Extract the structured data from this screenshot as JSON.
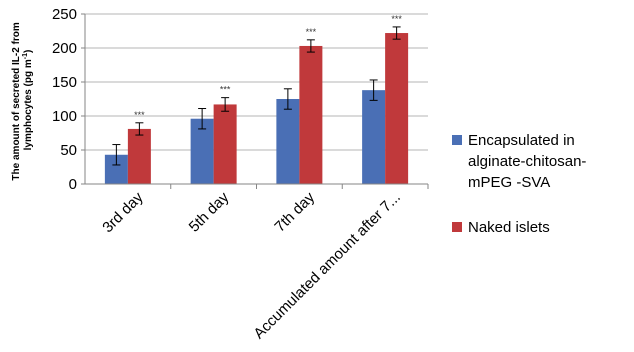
{
  "chart_data": {
    "type": "bar",
    "categories": [
      "3rd day",
      "5th day",
      "7th day",
      "Accumulated amount after 7..."
    ],
    "series": [
      {
        "name": "Encapsulated in alginate-chitosan-mPEG -SVA",
        "color": "#4a6fb5",
        "values": [
          43,
          96,
          125,
          138
        ],
        "errors": [
          15,
          15,
          15,
          15
        ]
      },
      {
        "name": "Naked islets",
        "color": "#c0393b",
        "values": [
          81,
          117,
          203,
          222
        ],
        "errors": [
          9,
          10,
          9,
          9
        ]
      }
    ],
    "annotations": [
      "***",
      "***",
      "***",
      "***"
    ],
    "ylabel_line1": "The amount of secreted IL-2 from",
    "ylabel_line2": "lymphocytes (pg m",
    "ylabel_sup": "-1",
    "ylabel_end": ")",
    "ylim": [
      0,
      250
    ],
    "yticks": [
      0,
      50,
      100,
      150,
      200,
      250
    ],
    "grid": true,
    "legend_position": "right"
  }
}
